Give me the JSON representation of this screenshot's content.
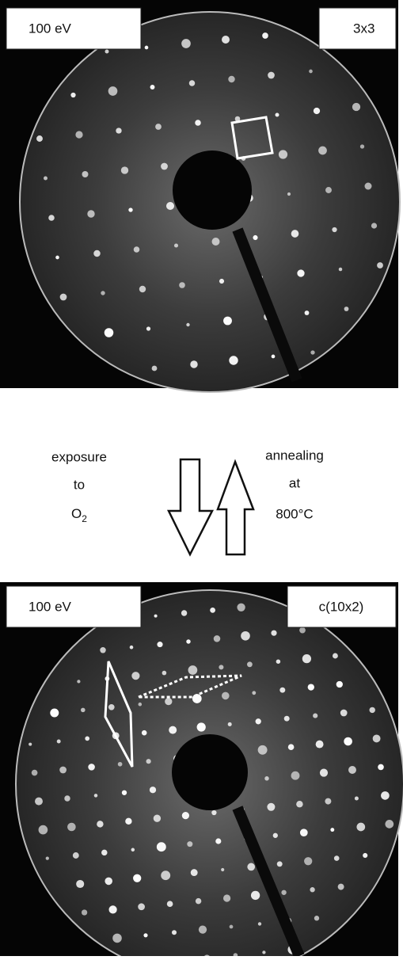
{
  "top_panel": {
    "energy_label": "100 eV",
    "structure_label": "3x3"
  },
  "middle": {
    "left_lines": [
      "exposure",
      "to"
    ],
    "left_gas": {
      "base": "O",
      "sub": "2"
    },
    "right_lines": [
      "annealing",
      "at",
      "800°C"
    ]
  },
  "bottom_panel": {
    "energy_label": "100 eV",
    "structure_label": "c(10x2)"
  }
}
